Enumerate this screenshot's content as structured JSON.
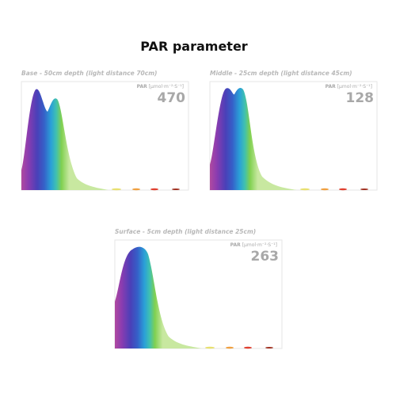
{
  "title": "PAR parameter",
  "panels": [
    {
      "heading": "Base - 50cm depth (light distance 70cm)",
      "par_label": "PAR",
      "par_unit": "[µmol·m⁻²·S⁻¹]",
      "par_value": "470"
    },
    {
      "heading": "Middle - 25cm depth (light distance 45cm)",
      "par_label": "PAR",
      "par_unit": "[µmol·m⁻²·S⁻¹]",
      "par_value": "128"
    },
    {
      "heading": "Surface - 5cm depth (light distance 25cm)",
      "par_label": "PAR",
      "par_unit": "[µmol·m⁻²·S⁻¹]",
      "par_value": "263"
    }
  ]
}
